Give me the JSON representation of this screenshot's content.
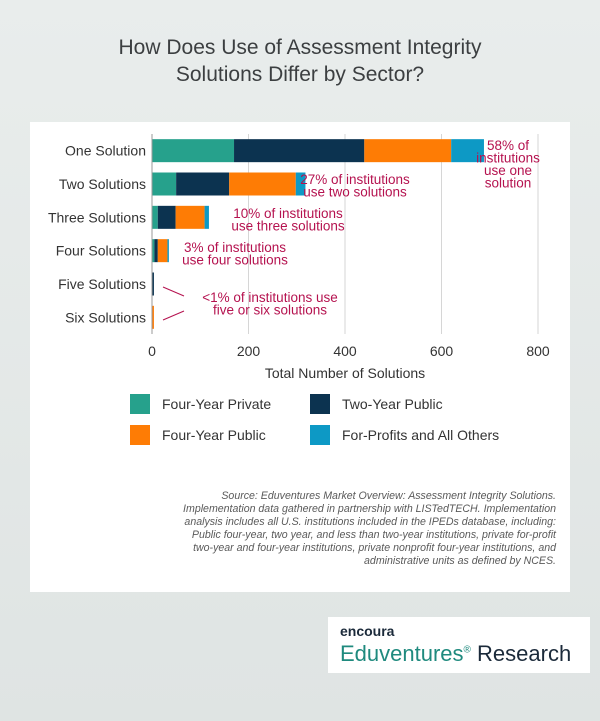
{
  "title_lines": [
    "How Does Use of Assessment Integrity",
    "Solutions Differ by Sector?"
  ],
  "colors": {
    "four_year_private": "#26a18c",
    "two_year_public": "#0c3350",
    "four_year_public": "#fe7c05",
    "for_profits_others": "#0d99c5",
    "annotation": "#b5124f"
  },
  "chart_data": {
    "type": "bar",
    "orientation": "horizontal",
    "stacked": true,
    "categories": [
      "One Solution",
      "Two Solutions",
      "Three Solutions",
      "Four Solutions",
      "Five Solutions",
      "Six Solutions"
    ],
    "series": [
      {
        "name": "Four-Year Private",
        "color": "#26a18c",
        "values": [
          170,
          50,
          12,
          5,
          0,
          0
        ]
      },
      {
        "name": "Two-Year Public",
        "color": "#0c3350",
        "values": [
          270,
          110,
          37,
          7,
          4,
          0
        ]
      },
      {
        "name": "Four-Year Public",
        "color": "#fe7c05",
        "values": [
          180,
          138,
          60,
          20,
          0,
          4
        ]
      },
      {
        "name": "For-Profits and All Others",
        "color": "#0d99c5",
        "values": [
          68,
          20,
          9,
          3,
          0,
          0
        ]
      }
    ],
    "xlabel": "Total Number of Solutions",
    "ylabel": "",
    "xlim": [
      0,
      800
    ],
    "xticks": [
      "0",
      "200",
      "400",
      "600",
      "800"
    ],
    "grid": "vertical",
    "legend_position": "bottom",
    "annotations": [
      {
        "category": "One Solution",
        "lines": [
          "58% of",
          "institutions",
          "use one",
          "solution"
        ]
      },
      {
        "category": "Two Solutions",
        "lines": [
          "27% of institutions",
          "use two solutions"
        ]
      },
      {
        "category": "Three Solutions",
        "lines": [
          "10% of institutions",
          "use three solutions"
        ]
      },
      {
        "category": "Four Solutions",
        "lines": [
          "3% of institutions",
          "use four solutions"
        ]
      },
      {
        "category": "Five Solutions",
        "lines": [
          "<1% of institutions use",
          "five or six solutions"
        ]
      }
    ]
  },
  "legend": [
    {
      "label": "Four-Year Private",
      "color": "#26a18c"
    },
    {
      "label": "Two-Year Public",
      "color": "#0c3350"
    },
    {
      "label": "Four-Year Public",
      "color": "#fe7c05"
    },
    {
      "label": "For-Profits and All Others",
      "color": "#0d99c5"
    }
  ],
  "source_lines": [
    "Source: Eduventures Market Overview: Assessment Integrity Solutions.",
    "Implementation data gathered in partnership with LISTedTECH. Implementation",
    "analysis includes all U.S. institutions included in the IPEDs database, including:",
    "Public four-year, two year, and less than two-year institutions, private for-profit",
    "two-year and four-year institutions, private nonprofit four-year institutions, and",
    "administrative units as defined by NCES."
  ],
  "brand": {
    "top": "encoura",
    "bottom": "Eduventures",
    "mark": "®",
    "bottom_suffix": " Research"
  }
}
